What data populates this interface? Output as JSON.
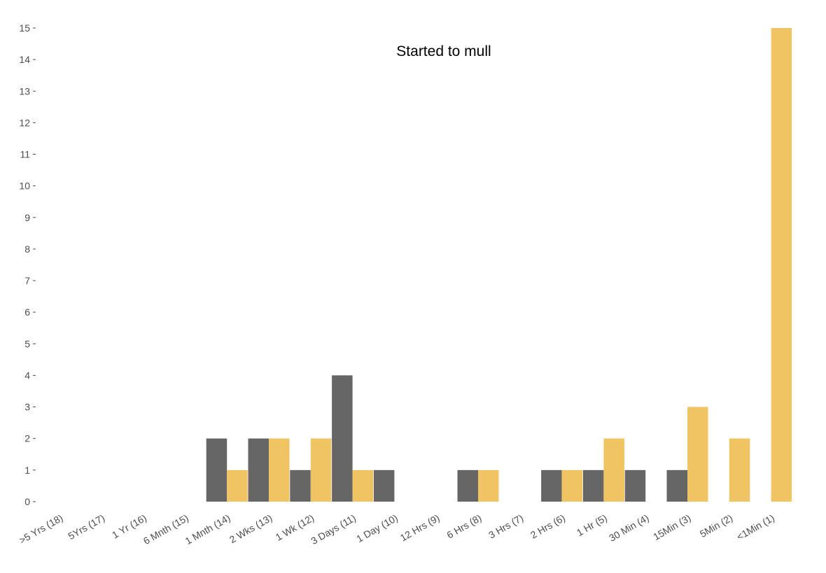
{
  "chart_data": {
    "type": "bar",
    "title": "Started to mull",
    "xlabel": "",
    "ylabel": "",
    "ylim": [
      0,
      15
    ],
    "yticks": [
      0,
      1,
      2,
      3,
      4,
      5,
      6,
      7,
      8,
      9,
      10,
      11,
      12,
      13,
      14,
      15
    ],
    "grid": false,
    "legend": "none",
    "categories": [
      ">5 Yrs (18)",
      "5Yrs (17)",
      "1 Yr (16)",
      "6 Mnth (15)",
      "1 Mnth (14)",
      "2 Wks (13)",
      "1 Wk (12)",
      "3 Days (11)",
      "1 Day (10)",
      "12 Hrs (9)",
      "6 Hrs (8)",
      "3 Hrs (7)",
      "2 Hrs (6)",
      "1 Hr (5)",
      "30 Min (4)",
      "15Min (3)",
      "5Min (2)",
      "<1Min (1)"
    ],
    "series": [
      {
        "color": "#666666",
        "values": [
          0,
          0,
          0,
          0,
          2,
          2,
          1,
          4,
          1,
          0,
          1,
          0,
          1,
          1,
          1,
          1,
          0,
          0
        ]
      },
      {
        "color": "#f0c463",
        "values": [
          0,
          0,
          0,
          0,
          1,
          2,
          2,
          1,
          0,
          0,
          1,
          0,
          1,
          2,
          0,
          3,
          2,
          15
        ]
      }
    ]
  }
}
